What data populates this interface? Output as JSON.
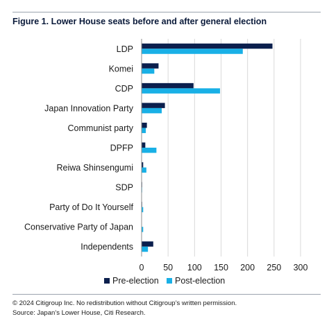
{
  "figure_title": "Figure 1. Lower House seats before and after general election",
  "notes": {
    "copyright": "© 2024 Citigroup Inc. No redistribution without Citigroup’s written permission.",
    "source": "Source: Japan’s Lower House, Citi Research."
  },
  "chart_data": {
    "type": "bar",
    "orientation": "horizontal",
    "categories": [
      "LDP",
      "Komei",
      "CDP",
      "Japan Innovation Party",
      "Communist party",
      "DPFP",
      "Reiwa Shinsengumi",
      "SDP",
      "Party of Do It Yourself",
      "Conservative Party of Japan",
      "Independents"
    ],
    "series": [
      {
        "name": "Pre-election",
        "color": "#0b1f4d",
        "values": [
          247,
          32,
          98,
          44,
          10,
          7,
          3,
          1,
          1,
          0,
          22
        ]
      },
      {
        "name": "Post-election",
        "color": "#19b0e6",
        "values": [
          191,
          24,
          148,
          38,
          8,
          28,
          9,
          1,
          3,
          3,
          12
        ]
      }
    ],
    "xlim": [
      0,
      300
    ],
    "xticks": [
      "0",
      "50",
      "100",
      "150",
      "200",
      "250",
      "300"
    ],
    "grid": "vertical",
    "legend": "bottom"
  }
}
